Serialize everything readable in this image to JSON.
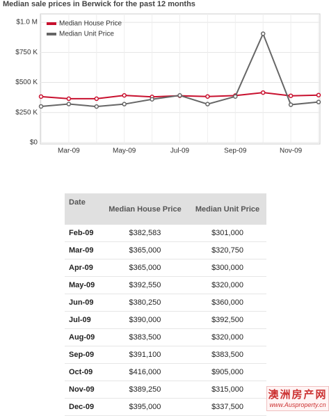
{
  "chart_data": {
    "type": "line",
    "title": "Median sale prices in Berwick for the past 12 months",
    "categories": [
      null,
      "Mar-09",
      null,
      "May-09",
      null,
      "Jul-09",
      null,
      "Sep-09",
      null,
      "Nov-09",
      null
    ],
    "series": [
      {
        "name": "Median House Price",
        "color": "#c8102e",
        "values": [
          382583,
          365000,
          365000,
          392550,
          380250,
          390000,
          383500,
          391100,
          416000,
          389250,
          395000
        ]
      },
      {
        "name": "Median Unit Price",
        "color": "#666666",
        "values": [
          301000,
          320750,
          300000,
          320000,
          360000,
          392500,
          320000,
          383500,
          905000,
          315000,
          337500
        ]
      }
    ],
    "ylim": [
      0,
      1070000
    ],
    "yticks": [
      {
        "value": 0,
        "label": "$0"
      },
      {
        "value": 250000,
        "label": "$250 K"
      },
      {
        "value": 500000,
        "label": "$500 K"
      },
      {
        "value": 750000,
        "label": "$750 K"
      },
      {
        "value": 1000000,
        "label": "$1.0 M"
      }
    ],
    "grid": true,
    "legend": "top-left"
  },
  "table": {
    "columns": [
      "Date",
      "Median House Price",
      "Median Unit Price"
    ],
    "rows": [
      [
        "Feb-09",
        "$382,583",
        "$301,000"
      ],
      [
        "Mar-09",
        "$365,000",
        "$320,750"
      ],
      [
        "Apr-09",
        "$365,000",
        "$300,000"
      ],
      [
        "May-09",
        "$392,550",
        "$320,000"
      ],
      [
        "Jun-09",
        "$380,250",
        "$360,000"
      ],
      [
        "Jul-09",
        "$390,000",
        "$392,500"
      ],
      [
        "Aug-09",
        "$383,500",
        "$320,000"
      ],
      [
        "Sep-09",
        "$391,100",
        "$383,500"
      ],
      [
        "Oct-09",
        "$416,000",
        "$905,000"
      ],
      [
        "Nov-09",
        "$389,250",
        "$315,000"
      ],
      [
        "Dec-09",
        "$395,000",
        "$337,500"
      ]
    ]
  },
  "watermark": {
    "name": "澳洲房产网",
    "url": "www.Ausproperty.cn"
  }
}
